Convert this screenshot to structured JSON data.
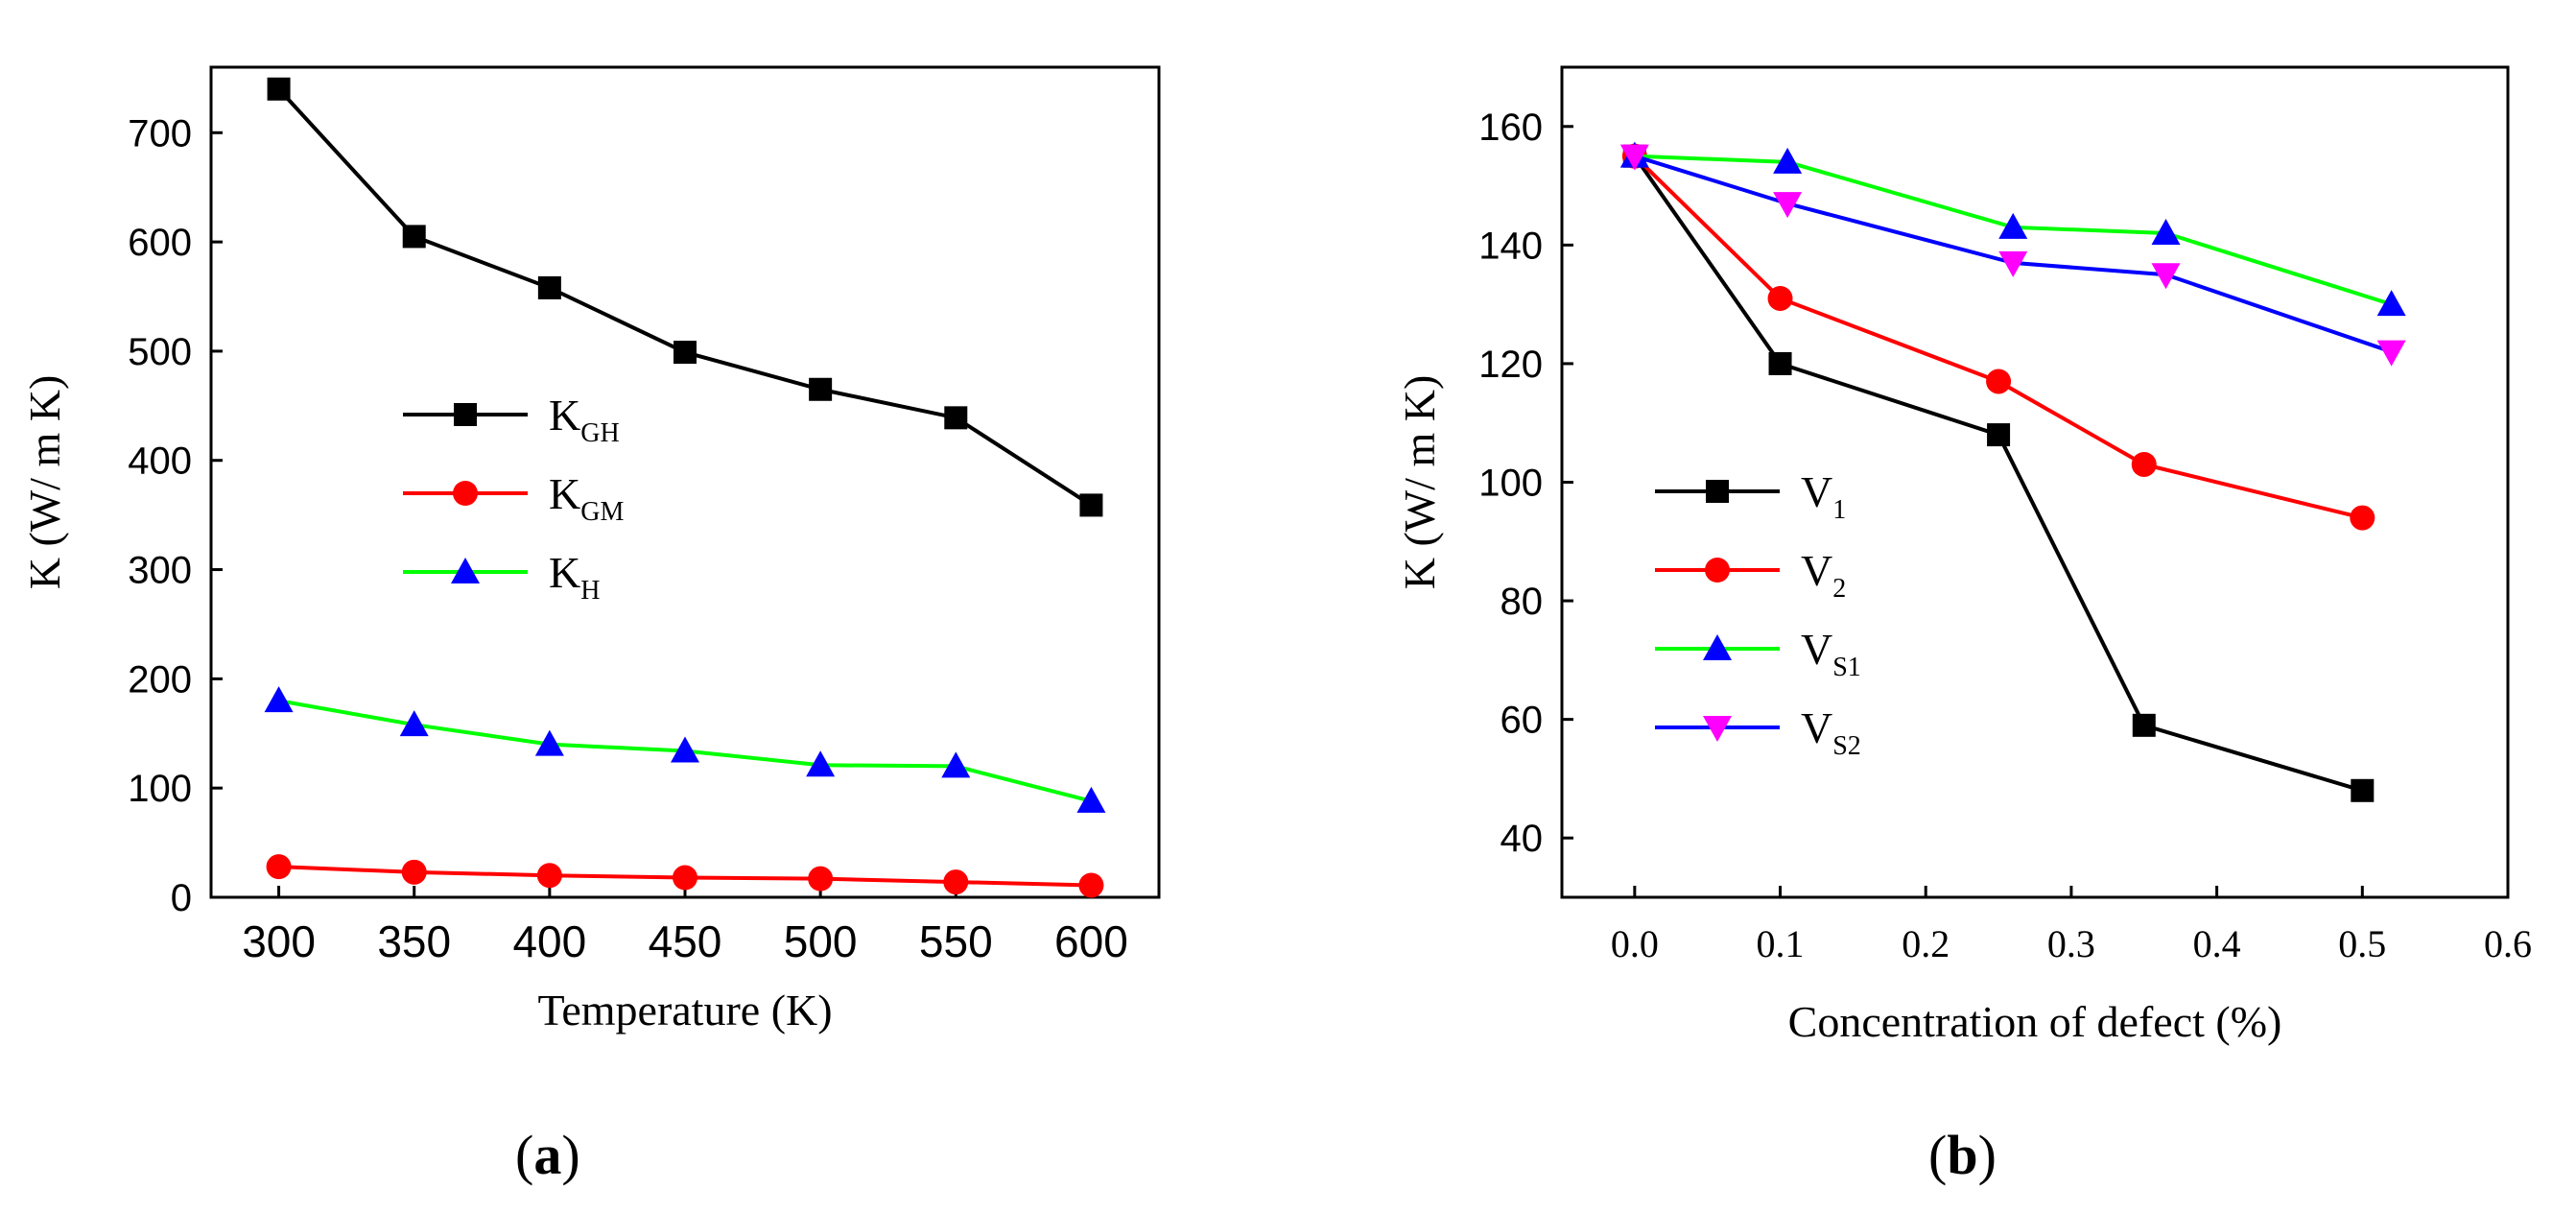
{
  "panels": [
    {
      "caption_letter": "a"
    },
    {
      "caption_letter": "b"
    }
  ],
  "chart_data": [
    {
      "type": "line",
      "xlabel": "Temperature (K)",
      "ylabel": "K (W/ m K)",
      "xlim": [
        275,
        625
      ],
      "ylim": [
        0,
        760
      ],
      "xticks": [
        300,
        350,
        400,
        450,
        500,
        550,
        600
      ],
      "yticks": [
        0,
        100,
        200,
        300,
        400,
        500,
        600,
        700
      ],
      "x": [
        300,
        350,
        400,
        450,
        500,
        550,
        600
      ],
      "legend_position": "center-left",
      "series": [
        {
          "name": "K",
          "sub": "GH",
          "color": "#000000",
          "marker": "square",
          "values": [
            740,
            605,
            558,
            499,
            465,
            439,
            359
          ]
        },
        {
          "name": "K",
          "sub": "GM",
          "color": "#ff0000",
          "marker": "circle",
          "values": [
            28,
            23,
            20,
            18,
            17,
            14,
            11
          ]
        },
        {
          "name": "K",
          "sub": "H",
          "color": "#00ff00",
          "marker_color": "#0000ff",
          "marker": "triangle-up",
          "values": [
            180,
            158,
            140,
            134,
            121,
            120,
            88
          ]
        }
      ]
    },
    {
      "type": "line",
      "xlabel": "Concentration of defect (%)",
      "ylabel": "K (W/ m K)",
      "xlim": [
        -0.05,
        0.6
      ],
      "ylim": [
        30,
        170
      ],
      "xticks": [
        0.0,
        0.1,
        0.2,
        0.3,
        0.4,
        0.5,
        0.6
      ],
      "xtick_labels": [
        "0.0",
        "0.1",
        "0.2",
        "0.3",
        "0.4",
        "0.5",
        "0.6"
      ],
      "yticks": [
        40,
        60,
        80,
        100,
        120,
        140,
        160
      ],
      "legend_position": "center-left",
      "series": [
        {
          "name": "V",
          "sub": "1",
          "color": "#000000",
          "marker": "square",
          "x": [
            0,
            0.1,
            0.25,
            0.35,
            0.5
          ],
          "values": [
            155,
            120,
            108,
            59,
            48
          ]
        },
        {
          "name": "V",
          "sub": "2",
          "color": "#ff0000",
          "marker": "circle",
          "x": [
            0,
            0.1,
            0.25,
            0.35,
            0.5
          ],
          "values": [
            155,
            131,
            117,
            103,
            94
          ]
        },
        {
          "name": "V",
          "sub": "S1",
          "color": "#00ff00",
          "marker_color": "#0000ff",
          "marker": "triangle-up",
          "x": [
            0,
            0.105,
            0.26,
            0.365,
            0.52
          ],
          "values": [
            155,
            154,
            143,
            142,
            130
          ]
        },
        {
          "name": "V",
          "sub": "S2",
          "color": "#0000ff",
          "marker_color": "#ff00ff",
          "marker": "triangle-down",
          "x": [
            0,
            0.105,
            0.26,
            0.365,
            0.52
          ],
          "values": [
            155,
            147,
            137,
            135,
            122
          ]
        }
      ]
    }
  ]
}
